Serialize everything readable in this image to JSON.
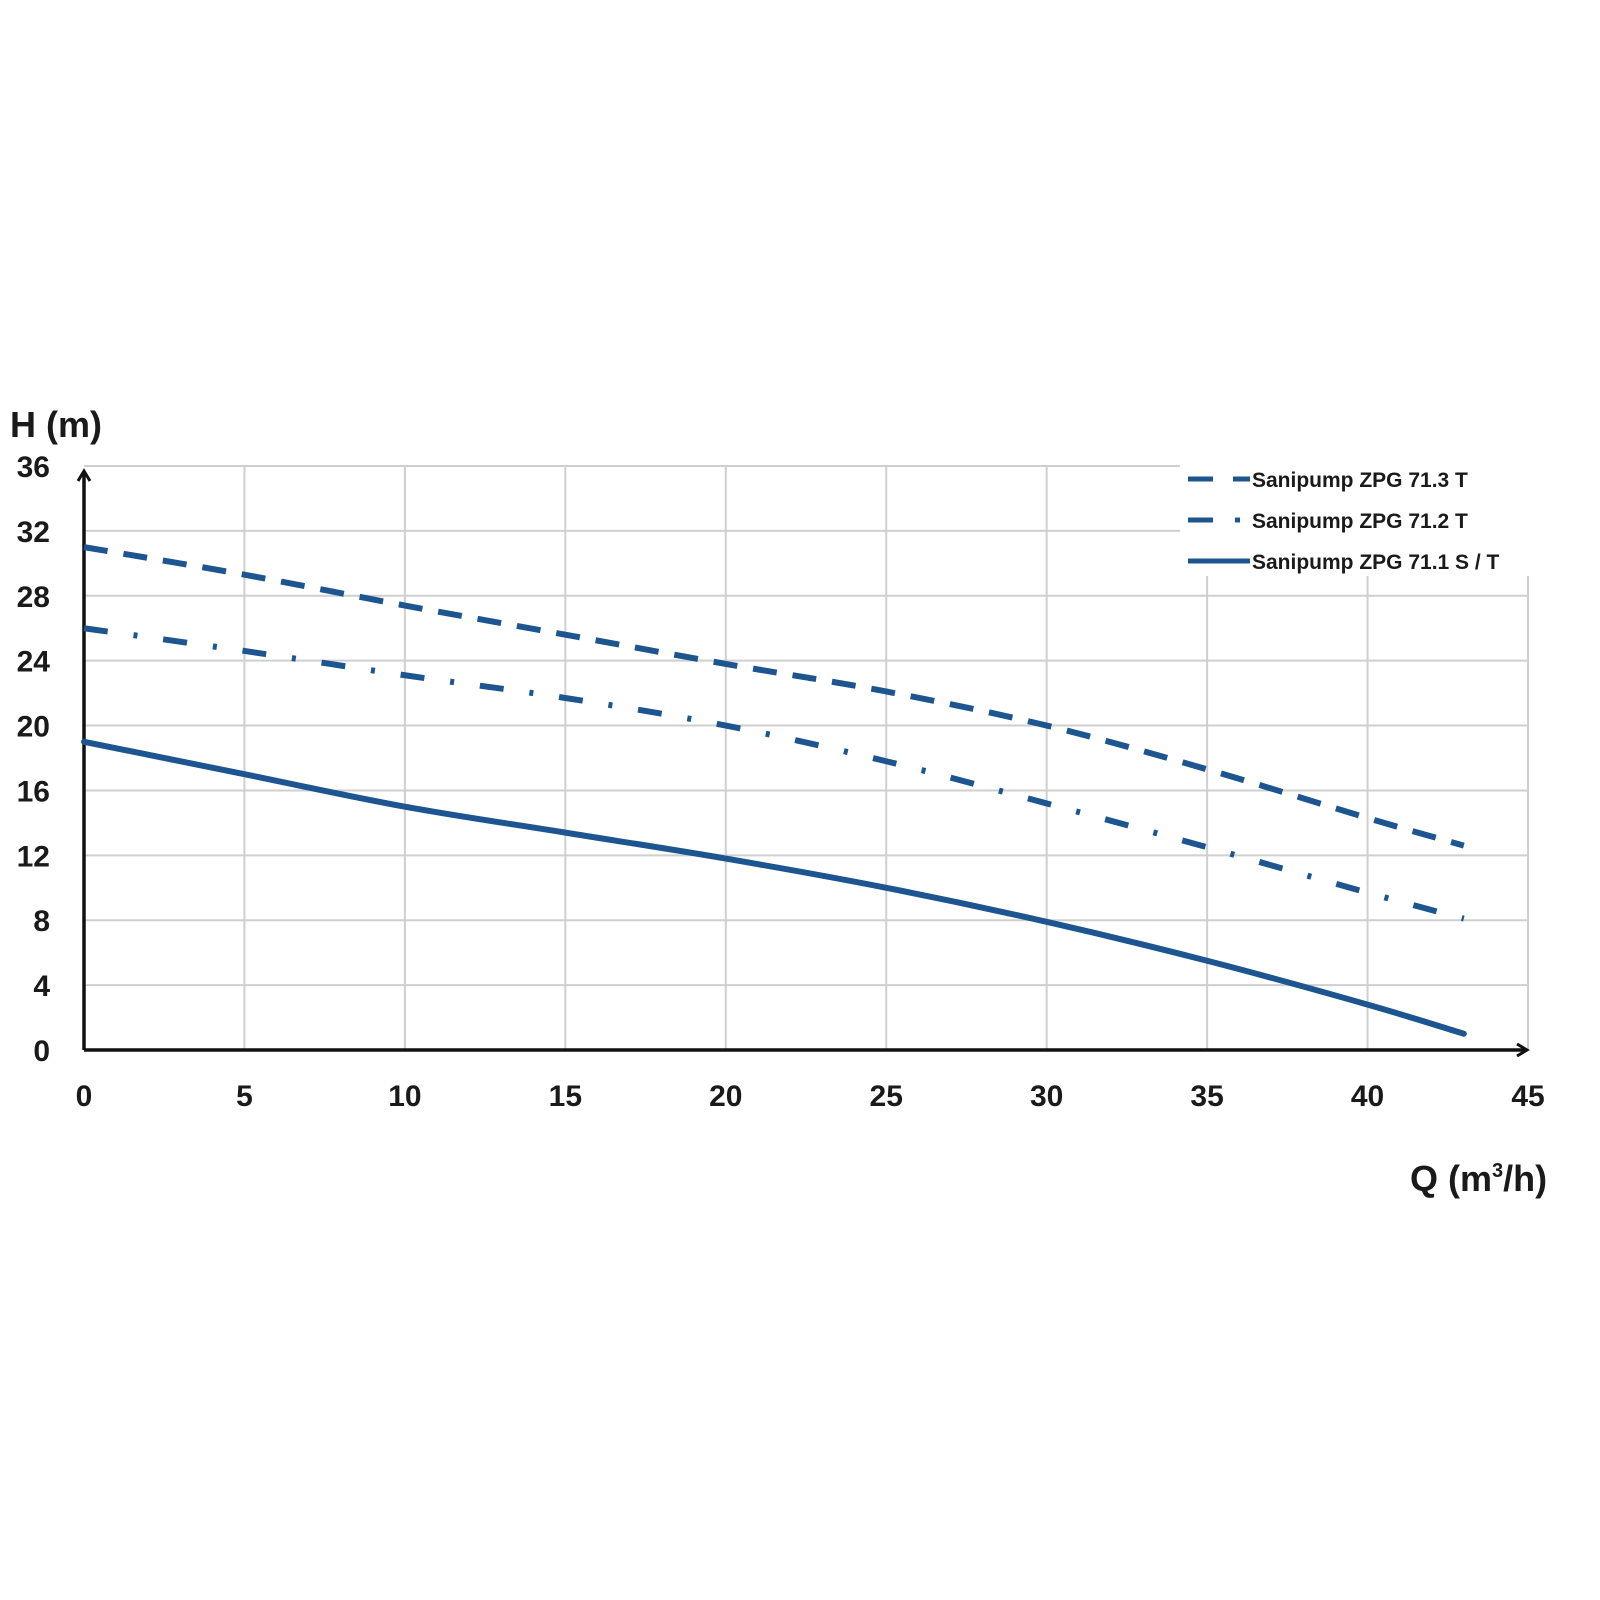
{
  "chart_data": {
    "type": "line",
    "title": "",
    "xlabel": "Q (m³/h)",
    "xlabel_main": "Q (m",
    "xlabel_sup": "3",
    "xlabel_tail": "/h)",
    "ylabel": "H (m)",
    "xlim": [
      0,
      45
    ],
    "ylim": [
      0,
      36
    ],
    "xticks": [
      0,
      5,
      10,
      15,
      20,
      25,
      30,
      35,
      40,
      45
    ],
    "yticks": [
      0,
      4,
      8,
      12,
      16,
      20,
      24,
      28,
      32,
      36
    ],
    "grid": true,
    "legend_position": "top-right",
    "line_color": "#1c5590",
    "grid_color": "#cfcfcf",
    "series": [
      {
        "name": "Sanipump ZPG 71.3 T",
        "style": "dashed",
        "x": [
          0,
          5,
          10,
          15,
          20,
          25,
          30,
          35,
          40,
          43
        ],
        "y": [
          31,
          29.3,
          27.4,
          25.6,
          23.8,
          22.1,
          20,
          17.3,
          14.3,
          12.6
        ]
      },
      {
        "name": "Sanipump ZPG 71.2 T",
        "style": "dashdot",
        "x": [
          0,
          5,
          10,
          15,
          20,
          25,
          30,
          35,
          40,
          43
        ],
        "y": [
          26,
          24.6,
          23.1,
          21.7,
          20,
          17.8,
          15.2,
          12.5,
          9.7,
          8.1
        ]
      },
      {
        "name": "Sanipump ZPG 71.1 S / T",
        "style": "solid",
        "x": [
          0,
          5,
          10,
          15,
          20,
          25,
          30,
          35,
          40,
          43
        ],
        "y": [
          19,
          17,
          15,
          13.4,
          11.8,
          10,
          7.9,
          5.5,
          2.8,
          1
        ]
      }
    ]
  }
}
